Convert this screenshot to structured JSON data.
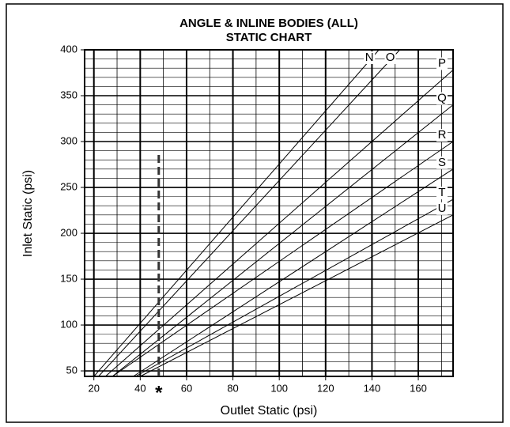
{
  "chart_data": {
    "type": "line",
    "title": [
      "ANGLE & INLINE BODIES (ALL)",
      "STATIC CHART"
    ],
    "x_label": "Outlet Static (psi)",
    "y_label": "Inlet Static (psi)",
    "xlim": [
      16,
      175
    ],
    "ylim": [
      44,
      400
    ],
    "xticks": [
      20,
      40,
      60,
      80,
      100,
      120,
      140,
      160
    ],
    "yticks": [
      50,
      100,
      150,
      200,
      250,
      300,
      350,
      400
    ],
    "grid": true,
    "minor_xstep": 10,
    "minor_ystep": 10,
    "color": "#000000",
    "series": [
      {
        "name": "N",
        "x": [
          20,
          143
        ],
        "values": [
          44,
          400
        ]
      },
      {
        "name": "O",
        "x": [
          22,
          152
        ],
        "values": [
          44,
          400
        ]
      },
      {
        "name": "P",
        "x": [
          25,
          175
        ],
        "values": [
          44,
          378
        ]
      },
      {
        "name": "Q",
        "x": [
          28,
          175
        ],
        "values": [
          44,
          340
        ]
      },
      {
        "name": "R",
        "x": [
          28,
          175
        ],
        "values": [
          44,
          300
        ]
      },
      {
        "name": "S",
        "x": [
          37,
          175
        ],
        "values": [
          44,
          270
        ]
      },
      {
        "name": "T",
        "x": [
          38,
          175
        ],
        "values": [
          44,
          237
        ]
      },
      {
        "name": "U",
        "x": [
          40,
          175
        ],
        "values": [
          44,
          220
        ]
      }
    ],
    "marker": {
      "x": 48,
      "y": [
        44,
        290
      ],
      "label": "*"
    }
  }
}
